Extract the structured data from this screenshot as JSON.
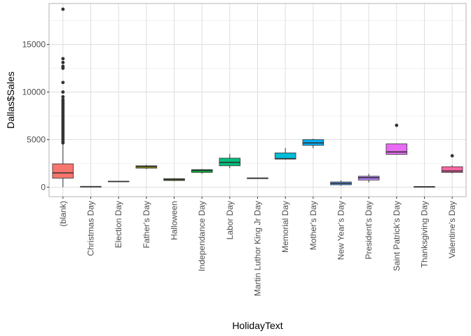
{
  "chart_data": {
    "type": "box",
    "xlabel": "HolidayText",
    "ylabel": "Dallas$Sales",
    "ylim": [
      -1000,
      19300
    ],
    "yticks": [
      0,
      5000,
      10000,
      15000
    ],
    "ytick_labels": [
      "0",
      "5000",
      "10000",
      "15000"
    ],
    "grid": true,
    "legend": "none",
    "categories": [
      "(blank)",
      "Christmas Day",
      "Election Day",
      "Father's Day",
      "Halloween",
      "Independance Day",
      "Labor Day",
      "Martin Luthor King Jr Day",
      "Memorial Day",
      "Mother's Day",
      "New Year's Day",
      "President's Day",
      "Saint Patrick's Day",
      "Thanksgiving Day",
      "Valentine's Day"
    ],
    "boxes": [
      {
        "min": 0,
        "q1": 950,
        "median": 1500,
        "q3": 2450,
        "max": 4500,
        "color": "#F8766D",
        "outliers": [
          18700,
          13500,
          13100,
          12700,
          12500,
          11000,
          10000,
          9500,
          9200,
          9000,
          8800,
          8600,
          8400,
          8200,
          8000,
          7800,
          7600,
          7400,
          7200,
          7000,
          6800,
          6600,
          6400,
          6200,
          6000,
          5800,
          5600,
          5400,
          5200,
          5000,
          4800,
          4650
        ]
      },
      {
        "min": 0,
        "q1": 20,
        "median": 50,
        "q3": 80,
        "max": 100,
        "color": "#E58700",
        "outliers": []
      },
      {
        "min": 550,
        "q1": 560,
        "median": 600,
        "q3": 630,
        "max": 640,
        "color": "#C99800",
        "outliers": []
      },
      {
        "min": 1900,
        "q1": 2000,
        "median": 2150,
        "q3": 2250,
        "max": 2350,
        "color": "#A3A500",
        "outliers": []
      },
      {
        "min": 650,
        "q1": 700,
        "median": 800,
        "q3": 900,
        "max": 950,
        "color": "#6BB100",
        "outliers": []
      },
      {
        "min": 1400,
        "q1": 1550,
        "median": 1750,
        "q3": 1850,
        "max": 1900,
        "color": "#00BA38",
        "outliers": []
      },
      {
        "min": 2000,
        "q1": 2250,
        "median": 2600,
        "q3": 3050,
        "max": 3500,
        "color": "#00BF7D",
        "outliers": []
      },
      {
        "min": 900,
        "q1": 920,
        "median": 950,
        "q3": 970,
        "max": 990,
        "color": "#00C0AF",
        "outliers": []
      },
      {
        "min": 2900,
        "q1": 2950,
        "median": 3000,
        "q3": 3600,
        "max": 4100,
        "color": "#00BCD8",
        "outliers": []
      },
      {
        "min": 4100,
        "q1": 4400,
        "median": 4650,
        "q3": 5000,
        "max": 5100,
        "color": "#00B0F6",
        "outliers": []
      },
      {
        "min": 150,
        "q1": 250,
        "median": 400,
        "q3": 550,
        "max": 700,
        "color": "#619CFF",
        "outliers": []
      },
      {
        "min": 500,
        "q1": 750,
        "median": 1000,
        "q3": 1150,
        "max": 1400,
        "color": "#B983FF",
        "outliers": []
      },
      {
        "min": 3400,
        "q1": 3450,
        "median": 3700,
        "q3": 4550,
        "max": 4550,
        "color": "#E76BF3",
        "outliers": [
          6500
        ]
      },
      {
        "min": 0,
        "q1": 10,
        "median": 40,
        "q3": 70,
        "max": 90,
        "color": "#FD61D1",
        "outliers": []
      },
      {
        "min": 1450,
        "q1": 1550,
        "median": 1700,
        "q3": 2150,
        "max": 2300,
        "color": "#FF67A4",
        "outliers": [
          3300
        ]
      }
    ]
  }
}
